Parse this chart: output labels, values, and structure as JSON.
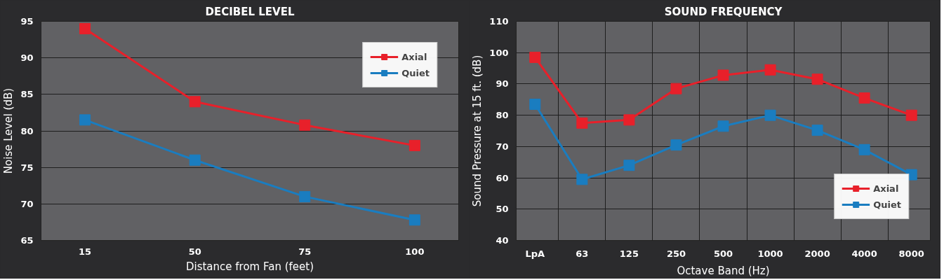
{
  "chart_data": [
    {
      "type": "line",
      "title": "DECIBEL LEVEL",
      "xlabel": "Distance from Fan (feet)",
      "ylabel": "Noise Level (dB)",
      "categories": [
        "15",
        "50",
        "75",
        "100"
      ],
      "ylim": [
        65,
        95
      ],
      "yticks": [
        65,
        70,
        75,
        80,
        85,
        90,
        95
      ],
      "grid": "y",
      "legend": "top right",
      "marker": "square",
      "line_style": "solid",
      "series": [
        {
          "name": "Axial",
          "color": "#e8202a",
          "values": [
            94,
            84,
            80.8,
            78
          ]
        },
        {
          "name": "Quiet",
          "color": "#1a7dc0",
          "values": [
            81.5,
            76,
            71,
            67.8
          ]
        }
      ]
    },
    {
      "type": "line",
      "title": "SOUND FREQUENCY",
      "xlabel": "Octave Band (Hz)",
      "ylabel": "Sound Pressure at 15 ft. (dB)",
      "categories": [
        "LpA",
        "63",
        "125",
        "250",
        "500",
        "1000",
        "2000",
        "4000",
        "8000"
      ],
      "ylim": [
        40,
        110
      ],
      "yticks": [
        40,
        50,
        60,
        70,
        80,
        90,
        100,
        110
      ],
      "grid": true,
      "legend": "bottom right",
      "marker": "square",
      "line_style": "solid",
      "series": [
        {
          "name": "Axial",
          "color": "#e8202a",
          "values": [
            98.5,
            77.5,
            78.5,
            88.5,
            92.8,
            94.5,
            91.5,
            85.5,
            80
          ]
        },
        {
          "name": "Quiet",
          "color": "#1a7dc0",
          "values": [
            83.5,
            59.5,
            64,
            70.5,
            76.5,
            80,
            75.2,
            69,
            61
          ]
        }
      ]
    }
  ]
}
